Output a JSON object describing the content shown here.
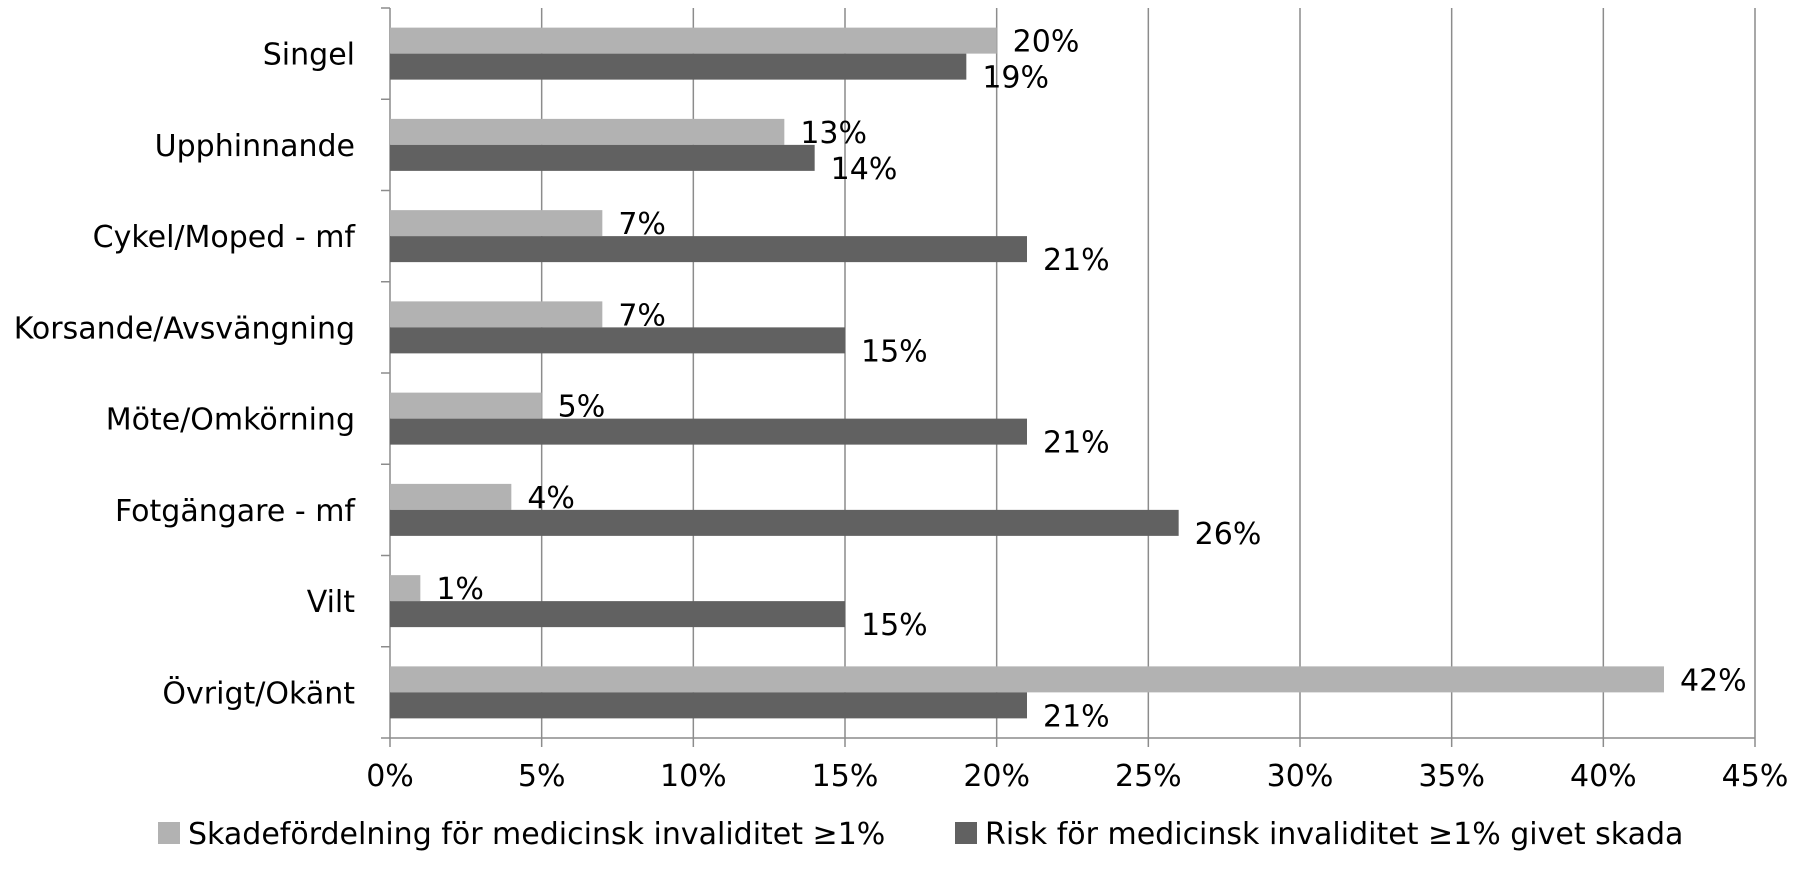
{
  "chart_data": {
    "type": "bar",
    "orientation": "horizontal",
    "categories": [
      "Singel",
      "Upphinnande",
      "Cykel/Moped - mf",
      "Korsande/Avsvängning",
      "Möte/Omkörning",
      "Fotgängare - mf",
      "Vilt",
      "Övrigt/Okänt"
    ],
    "series": [
      {
        "name": "Skadefördelning för medicinsk invaliditet ≥1%",
        "color": "#b2b2b2",
        "values": [
          20,
          13,
          7,
          7,
          5,
          4,
          1,
          42
        ],
        "data_labels": [
          "20%",
          "13%",
          "7%",
          "7%",
          "5%",
          "4%",
          "1%",
          "42%"
        ]
      },
      {
        "name": "Risk för medicinsk invaliditet ≥1% givet skada",
        "color": "#616161",
        "values": [
          19,
          14,
          21,
          15,
          21,
          26,
          15,
          21
        ],
        "data_labels": [
          "19%",
          "14%",
          "21%",
          "15%",
          "21%",
          "26%",
          "15%",
          "21%"
        ]
      }
    ],
    "x_ticks": [
      "0%",
      "5%",
      "10%",
      "15%",
      "20%",
      "25%",
      "30%",
      "35%",
      "40%",
      "45%"
    ],
    "xlim": [
      0,
      45
    ],
    "grid": "vertical",
    "legend": "bottom",
    "title": "",
    "xlabel": "",
    "ylabel": ""
  }
}
